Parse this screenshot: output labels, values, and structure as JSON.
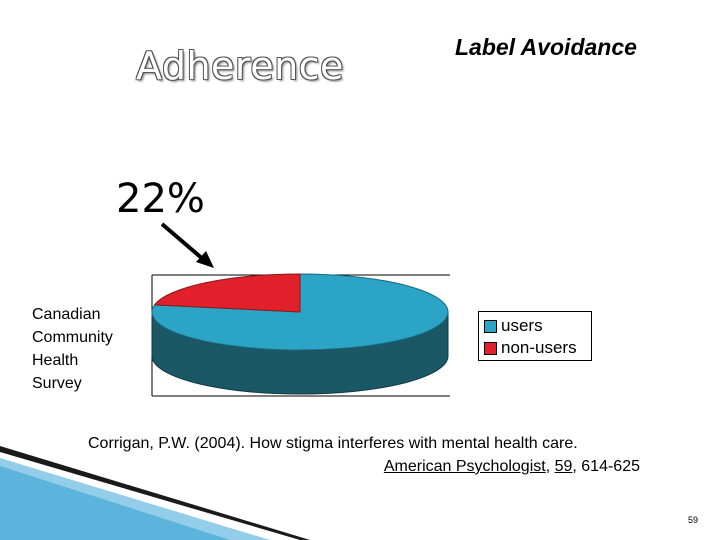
{
  "slide": {
    "title_left": "Adherence",
    "title_right": "Label Avoidance",
    "callout_value": "22%",
    "survey_label": [
      "Canadian",
      "Community",
      "Health",
      "Survey"
    ],
    "citation": {
      "line1": "Corrigan, P.W. (2004). How stigma interferes with mental health care.",
      "journal": "American Psychologist",
      "sep1": ", ",
      "volume": "59",
      "pages": ", 614-625"
    },
    "page_number": "59"
  },
  "chart_data": {
    "type": "pie",
    "style": "3d",
    "categories": [
      "users",
      "non-users"
    ],
    "values": [
      78,
      22
    ],
    "colors": {
      "users": "#2ba4c6",
      "users_side": "#1b5866",
      "non-users": "#e0202a",
      "non-users_side": "#8a1a1a",
      "plot_border": "#000000"
    },
    "legend_position": "right"
  }
}
